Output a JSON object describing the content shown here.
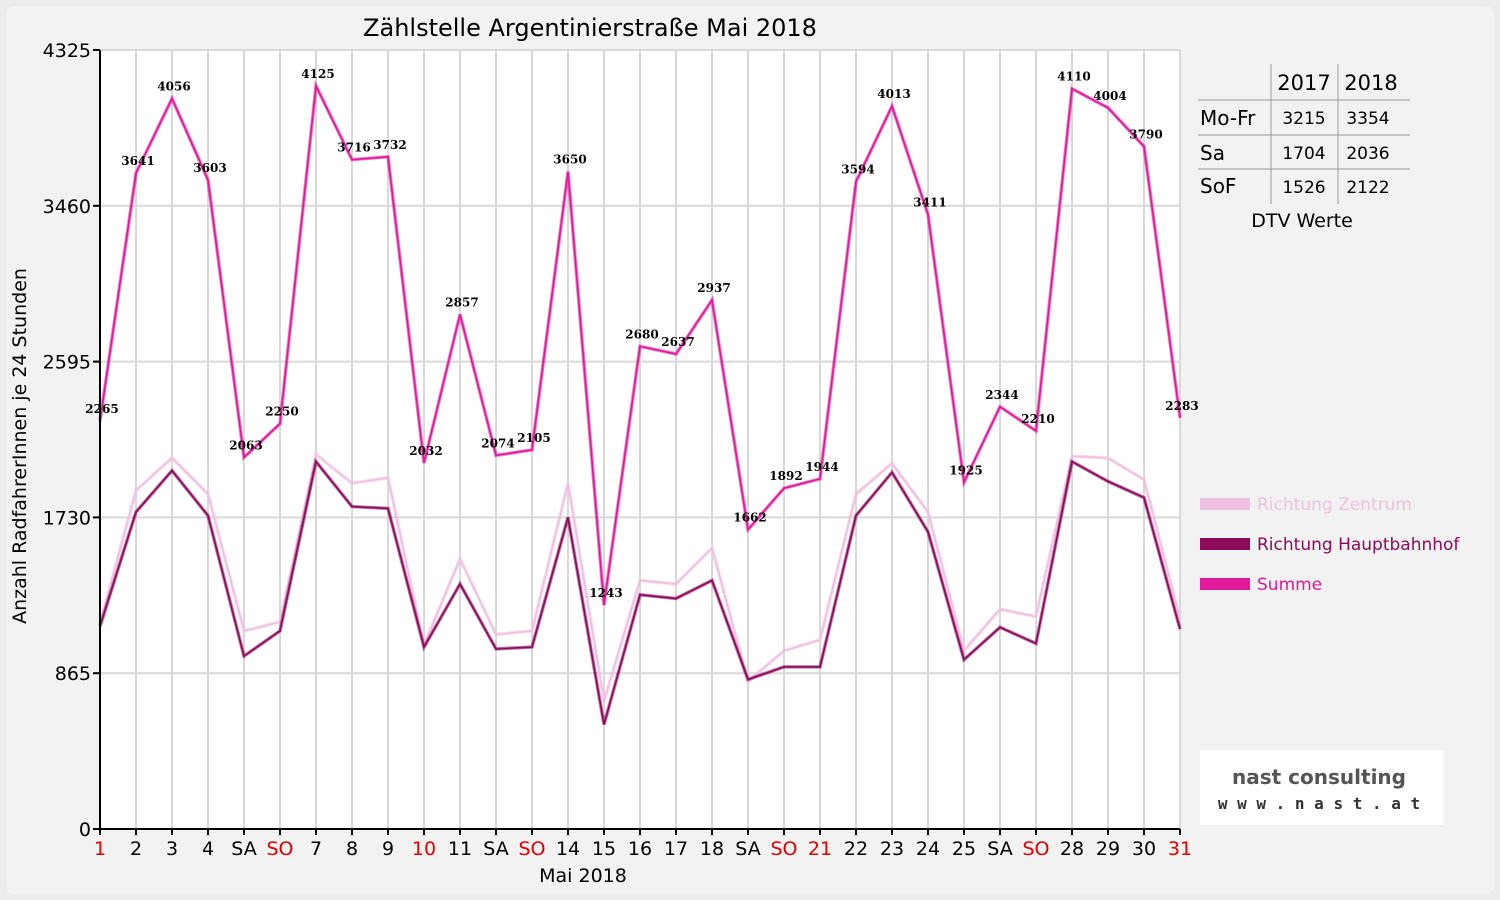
{
  "chart_data": {
    "type": "line",
    "title": "Zählstelle Argentinierstraße Mai 2018",
    "xlabel": "Mai 2018",
    "ylabel": "Anzahl RadfahrerInnen je 24 Stunden",
    "ylim": [
      0,
      4325
    ],
    "yticks": [
      0,
      865,
      1730,
      2595,
      3460,
      4325
    ],
    "categories": [
      "1",
      "2",
      "3",
      "4",
      "SA",
      "SO",
      "7",
      "8",
      "9",
      "10",
      "11",
      "SA",
      "SO",
      "14",
      "15",
      "16",
      "17",
      "18",
      "SA",
      "SO",
      "21",
      "22",
      "23",
      "24",
      "25",
      "SA",
      "SO",
      "28",
      "29",
      "30",
      "31"
    ],
    "red_categories": [
      0,
      5,
      9,
      12,
      19,
      20,
      26,
      30
    ],
    "grid": true,
    "legend_position": "right",
    "series": [
      {
        "name": "Richtung Zentrum",
        "color": "#f0c0e0",
        "values": [
          1140,
          1880,
          2060,
          1860,
          1100,
          1150,
          2080,
          1920,
          1950,
          1020,
          1500,
          1080,
          1100,
          1920,
          710,
          1380,
          1360,
          1560,
          820,
          990,
          1050,
          1860,
          2030,
          1760,
          990,
          1220,
          1180,
          2070,
          2060,
          1940,
          1170
        ]
      },
      {
        "name": "Richtung Hauptbahnhof",
        "color": "#8b0a5c",
        "values": [
          1125,
          1760,
          1990,
          1740,
          960,
          1100,
          2040,
          1790,
          1780,
          1010,
          1360,
          1000,
          1010,
          1730,
          580,
          1300,
          1280,
          1380,
          830,
          900,
          900,
          1740,
          1980,
          1650,
          940,
          1120,
          1030,
          2040,
          1930,
          1840,
          1110
        ]
      },
      {
        "name": "Summe",
        "color": "#e0189a",
        "values": [
          2265,
          3641,
          4056,
          3603,
          2063,
          2250,
          4125,
          3716,
          3732,
          2032,
          2857,
          2074,
          2105,
          3650,
          1243,
          2680,
          2637,
          2937,
          1662,
          1892,
          1944,
          3594,
          4013,
          3411,
          1925,
          2344,
          2210,
          4110,
          4004,
          3790,
          2283
        ]
      }
    ]
  },
  "dtv_table": {
    "columns": [
      "2017",
      "2018"
    ],
    "rows": [
      {
        "label": "Mo-Fr",
        "v2017": "3215",
        "v2018": "3354"
      },
      {
        "label": "Sa",
        "v2017": "1704",
        "v2018": "2036"
      },
      {
        "label": "SoF",
        "v2017": "1526",
        "v2018": "2122"
      }
    ],
    "caption": "DTV Werte"
  },
  "logo": {
    "name": "nast consulting",
    "url": "w w w . n a s t . a t"
  }
}
